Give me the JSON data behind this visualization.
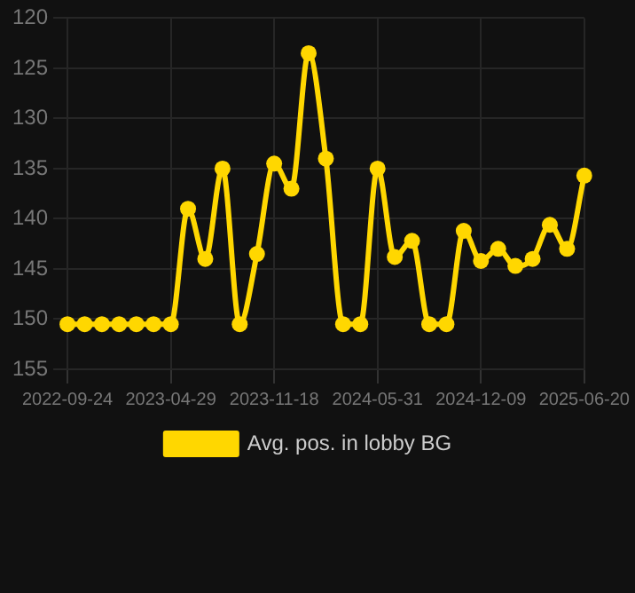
{
  "chart_data": {
    "type": "line",
    "categories": [
      "2022-09-24",
      null,
      null,
      null,
      null,
      null,
      "2023-04-29",
      null,
      null,
      null,
      null,
      null,
      "2023-11-18",
      null,
      null,
      null,
      null,
      null,
      "2024-05-31",
      null,
      null,
      null,
      null,
      null,
      "2024-12-09",
      null,
      null,
      null,
      null,
      null,
      "2025-06-20"
    ],
    "series": [
      {
        "name": "Avg. pos. in lobby BG",
        "color": "#ffd700",
        "values": [
          150.5,
          150.5,
          150.5,
          150.5,
          150.5,
          150.5,
          150.5,
          139,
          144,
          135,
          150.5,
          143.5,
          134.5,
          137,
          123.5,
          134,
          150.5,
          150.5,
          135,
          143.8,
          142.2,
          150.5,
          150.5,
          141.2,
          144.2,
          143,
          144.7,
          144,
          140.6,
          143,
          135.7
        ]
      }
    ],
    "ylim": [
      155,
      120
    ],
    "yticks": [
      120,
      125,
      130,
      135,
      140,
      145,
      150,
      155
    ],
    "grid": true,
    "legend": "bottom",
    "marker": "circle",
    "line_style": "solid"
  }
}
